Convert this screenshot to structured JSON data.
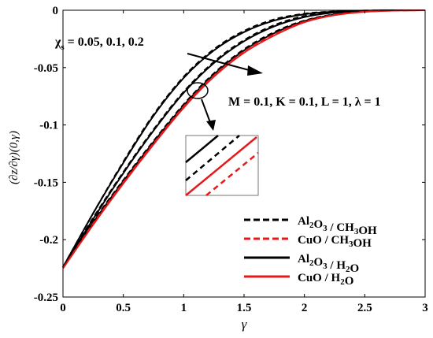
{
  "chart_data": {
    "type": "line",
    "xlabel": "γ",
    "ylabel": "(∂z/∂γ)(0,γ)",
    "xlim": [
      0,
      3
    ],
    "ylim": [
      -0.25,
      0
    ],
    "xticks": [
      0,
      0.5,
      1,
      1.5,
      2,
      2.5,
      3
    ],
    "xtick_labels": [
      "0",
      "0.5",
      "1",
      "1.5",
      "2",
      "2.5",
      "3"
    ],
    "yticks": [
      0,
      -0.05,
      -0.1,
      -0.15,
      -0.2,
      -0.25
    ],
    "ytick_labels": [
      "0",
      "-0.05",
      "-0.1",
      "-0.15",
      "-0.2",
      "-0.25"
    ],
    "grid": false,
    "legend_position": "bottom-right",
    "legend": [
      {
        "base": "Al",
        "sub1": "2",
        "mid": "O",
        "sub2": "3",
        "tail": " / CH",
        "sub3": "3",
        "end": "OH",
        "color": "#000000",
        "dash": true
      },
      {
        "base": "CuO / CH",
        "sub1": "3",
        "mid": "OH",
        "sub2": "",
        "tail": "",
        "sub3": "",
        "end": "",
        "color": "#e8191b",
        "dash": true
      },
      {
        "base": "Al",
        "sub1": "2",
        "mid": "O",
        "sub2": "3",
        "tail": " / H",
        "sub3": "2",
        "end": "O",
        "color": "#000000",
        "dash": false
      },
      {
        "base": "CuO / H",
        "sub1": "2",
        "mid": "O",
        "sub2": "",
        "tail": "",
        "sub3": "",
        "end": "",
        "color": "#e8191b",
        "dash": false
      }
    ],
    "annotations": {
      "chi_label": "χ",
      "chi_sub": "s",
      "chi_values": " = 0.05, 0.1, 0.2",
      "params": "M = 0.1, K = 0.1, L = 1, λ = 1"
    },
    "series": [
      {
        "color": "#000000",
        "dash": true,
        "x": [
          0,
          0.25,
          0.5,
          0.75,
          1.0,
          1.25,
          1.5,
          1.75,
          2.0,
          2.25,
          2.5,
          2.75,
          3.0
        ],
        "y": [
          -0.224,
          -0.177,
          -0.132,
          -0.091,
          -0.058,
          -0.034,
          -0.018,
          -0.008,
          -0.003,
          -0.001,
          -0.0003,
          0,
          0
        ]
      },
      {
        "color": "#000000",
        "dash": false,
        "x": [
          0,
          0.25,
          0.5,
          0.75,
          1.0,
          1.25,
          1.5,
          1.75,
          2.0,
          2.25,
          2.5,
          2.75,
          3.0
        ],
        "y": [
          -0.224,
          -0.177,
          -0.133,
          -0.092,
          -0.059,
          -0.035,
          -0.019,
          -0.009,
          -0.0035,
          -0.0012,
          -0.0003,
          0,
          0
        ]
      },
      {
        "color": "#000000",
        "dash": true,
        "x": [
          0,
          0.25,
          0.5,
          0.75,
          1.0,
          1.25,
          1.5,
          1.75,
          2.0,
          2.25,
          2.5,
          2.75,
          3.0
        ],
        "y": [
          -0.224,
          -0.181,
          -0.141,
          -0.104,
          -0.071,
          -0.045,
          -0.026,
          -0.013,
          -0.005,
          -0.0018,
          -0.0005,
          0,
          0
        ]
      },
      {
        "color": "#000000",
        "dash": false,
        "x": [
          0,
          0.25,
          0.5,
          0.75,
          1.0,
          1.25,
          1.5,
          1.75,
          2.0,
          2.25,
          2.5,
          2.75,
          3.0
        ],
        "y": [
          -0.224,
          -0.182,
          -0.142,
          -0.105,
          -0.072,
          -0.046,
          -0.027,
          -0.014,
          -0.006,
          -0.002,
          -0.0006,
          0,
          0
        ]
      },
      {
        "color": "#000000",
        "dash": true,
        "x": [
          0,
          0.25,
          0.5,
          0.75,
          1.0,
          1.25,
          1.5,
          1.75,
          2.0,
          2.25,
          2.5,
          2.75,
          3.0
        ],
        "y": [
          -0.224,
          -0.184,
          -0.148,
          -0.114,
          -0.082,
          -0.055,
          -0.034,
          -0.019,
          -0.009,
          -0.0035,
          -0.001,
          -0.0002,
          0
        ]
      },
      {
        "color": "#000000",
        "dash": false,
        "x": [
          0,
          0.25,
          0.5,
          0.75,
          1.0,
          1.25,
          1.5,
          1.75,
          2.0,
          2.25,
          2.5,
          2.75,
          3.0
        ],
        "y": [
          -0.224,
          -0.185,
          -0.149,
          -0.115,
          -0.083,
          -0.056,
          -0.035,
          -0.02,
          -0.0095,
          -0.0038,
          -0.0012,
          -0.0002,
          0
        ]
      },
      {
        "color": "#e8191b",
        "dash": true,
        "x": [
          0,
          0.25,
          0.5,
          0.75,
          1.0,
          1.25,
          1.5,
          1.75,
          2.0,
          2.25,
          2.5,
          2.75,
          3.0
        ],
        "y": [
          -0.225,
          -0.186,
          -0.15,
          -0.116,
          -0.084,
          -0.057,
          -0.036,
          -0.021,
          -0.01,
          -0.004,
          -0.0013,
          -0.0003,
          0
        ]
      },
      {
        "color": "#e8191b",
        "dash": false,
        "x": [
          0,
          0.25,
          0.5,
          0.75,
          1.0,
          1.25,
          1.5,
          1.75,
          2.0,
          2.25,
          2.5,
          2.75,
          3.0
        ],
        "y": [
          -0.225,
          -0.187,
          -0.151,
          -0.117,
          -0.085,
          -0.058,
          -0.037,
          -0.022,
          -0.0105,
          -0.0043,
          -0.0014,
          -0.0003,
          0
        ]
      }
    ]
  }
}
